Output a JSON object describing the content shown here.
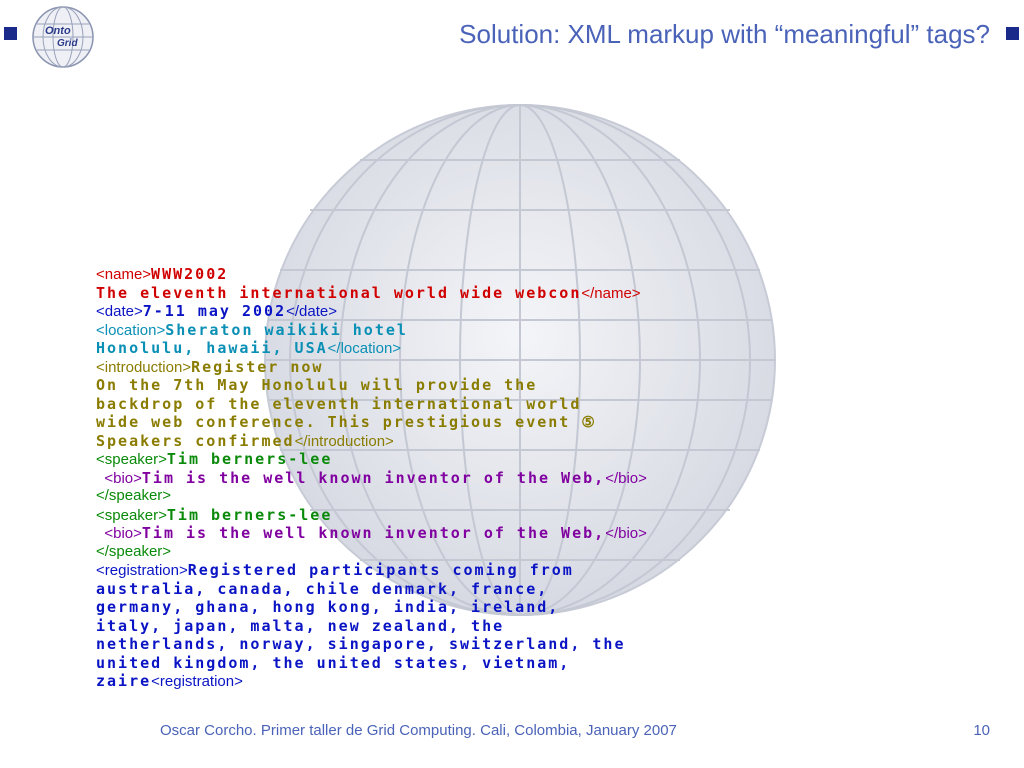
{
  "header": {
    "logo_text_top": "Onto",
    "logo_text_bottom": "Grid",
    "title": "Solution: XML markup with “meaningful” tags?"
  },
  "colors": {
    "title": "#4a63b8",
    "corner_square": "#1a2a8a",
    "name": "#d10000",
    "date": "#0a14c4",
    "location": "#0a8fb5",
    "introduction": "#8a7c00",
    "speaker": "#0a8a0a",
    "bio": "#8000a0",
    "registration": "#0a14c4"
  },
  "xml": {
    "line_01": {
      "tag": "<name>",
      "garbled": "WWW2002"
    },
    "line_02": {
      "garbled": "The eleventh international world wide webcon",
      "close": "</name>"
    },
    "line_03": {
      "tag": "<date>",
      "garbled": "7-11 may 2002",
      "close": "</date>"
    },
    "line_04": {
      "tag": "<location>",
      "garbled": "Sheraton waikiki hotel"
    },
    "line_05": {
      "garbled": "Honolulu, hawaii, USA",
      "close": "</location>"
    },
    "line_06": {
      "tag": "<introduction>",
      "garbled": "Register now"
    },
    "line_07": {
      "garbled": "On the 7th May Honolulu will provide the"
    },
    "line_08": {
      "garbled": "backdrop of the eleventh international world"
    },
    "line_09": {
      "garbled": "wide web conference. This prestigious event ⑤"
    },
    "line_10": {
      "garbled": "Speakers confirmed",
      "close": "</introduction>"
    },
    "line_11": {
      "tag": "<speaker>",
      "garbled": "Tim berners-lee"
    },
    "line_12": {
      "indent": "  ",
      "tag": "<bio>",
      "garbled": "Tim is the well known inventor of the Web,",
      "close": "</bio>"
    },
    "line_13": {
      "close": "</speaker>"
    },
    "line_14": {
      "tag": "<speaker>",
      "garbled": "Tim berners-lee"
    },
    "line_15": {
      "indent": "  ",
      "tag": "<bio>",
      "garbled": "Tim is the well known inventor of the Web,",
      "close": "</bio>"
    },
    "line_16": {
      "close": "</speaker>"
    },
    "line_17": {
      "tag": "<registration>",
      "garbled": "Registered participants coming from"
    },
    "line_18": {
      "garbled": "australia, canada, chile denmark, france,"
    },
    "line_19": {
      "garbled": "germany, ghana, hong kong, india, ireland,"
    },
    "line_20": {
      "garbled": "italy, japan, malta, new zealand, the"
    },
    "line_21": {
      "garbled": "netherlands, norway, singapore, switzerland, the"
    },
    "line_22": {
      "garbled": "united kingdom, the united states, vietnam,"
    },
    "line_23": {
      "garbled": "zaire",
      "close": "<registration>"
    }
  },
  "footer": {
    "text": "Oscar Corcho. Primer taller de Grid Computing. Cali, Colombia, January 2007",
    "page": "10"
  }
}
